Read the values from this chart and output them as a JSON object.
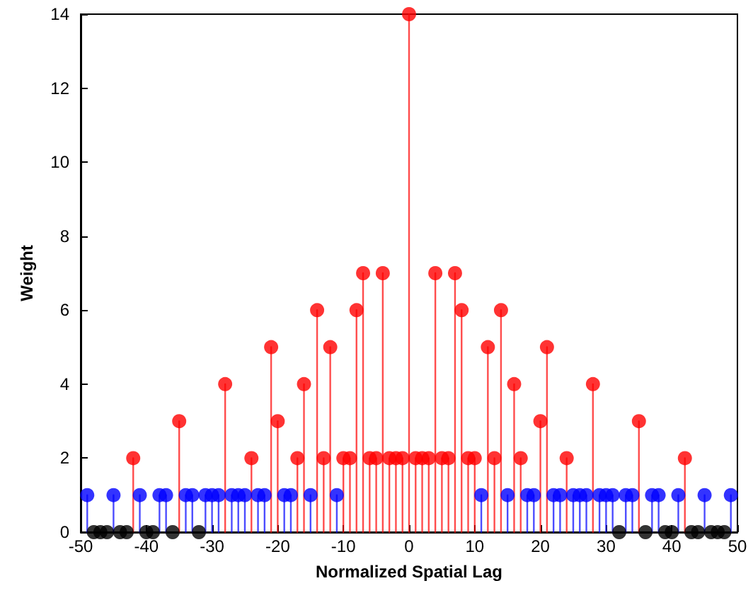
{
  "chart_data": {
    "type": "lollipop",
    "xlabel": "Normalized Spatial Lag",
    "ylabel": "Weight",
    "xlim": [
      -50,
      50
    ],
    "xticks": [
      -50,
      -40,
      -30,
      -20,
      -10,
      0,
      10,
      20,
      30,
      40,
      50
    ],
    "ylim": [
      0,
      14
    ],
    "yticks": [
      0,
      2,
      4,
      6,
      8,
      10,
      12,
      14
    ],
    "grid": false,
    "marker": "circle",
    "series": [
      {
        "color": "#ff0000",
        "x": [
          -42,
          -35,
          -28,
          -24,
          -21,
          -20,
          -17,
          -16,
          -14,
          -13,
          -12,
          -10,
          -9,
          -8,
          -7,
          -6,
          -5,
          -4,
          -3,
          -2,
          -1,
          0,
          1,
          2,
          3,
          4,
          5,
          6,
          7,
          8,
          9,
          10,
          12,
          13,
          14,
          16,
          17,
          20,
          21,
          24,
          28,
          35,
          42
        ],
        "values": [
          2,
          3,
          4,
          2,
          5,
          3,
          2,
          4,
          6,
          2,
          5,
          2,
          2,
          6,
          7,
          2,
          2,
          7,
          2,
          2,
          2,
          14,
          2,
          2,
          2,
          7,
          2,
          2,
          7,
          6,
          2,
          2,
          5,
          2,
          6,
          4,
          2,
          3,
          5,
          2,
          4,
          3,
          2
        ]
      },
      {
        "color": "#0000ff",
        "x": [
          -49,
          -45,
          -41,
          -38,
          -37,
          -34,
          -33,
          -31,
          -30,
          -29,
          -27,
          -26,
          -25,
          -23,
          -22,
          -19,
          -18,
          -15,
          -11,
          11,
          15,
          18,
          19,
          22,
          23,
          25,
          26,
          27,
          29,
          30,
          31,
          33,
          34,
          37,
          38,
          41,
          45,
          49
        ],
        "values": [
          1,
          1,
          1,
          1,
          1,
          1,
          1,
          1,
          1,
          1,
          1,
          1,
          1,
          1,
          1,
          1,
          1,
          1,
          1,
          1,
          1,
          1,
          1,
          1,
          1,
          1,
          1,
          1,
          1,
          1,
          1,
          1,
          1,
          1,
          1,
          1,
          1,
          1
        ]
      },
      {
        "color": "#000000",
        "x": [
          -48,
          -47,
          -46,
          -44,
          -43,
          -40,
          -39,
          -36,
          -32,
          32,
          36,
          39,
          40,
          43,
          44,
          46,
          47,
          48
        ],
        "values": [
          0,
          0,
          0,
          0,
          0,
          0,
          0,
          0,
          0,
          0,
          0,
          0,
          0,
          0,
          0,
          0,
          0,
          0
        ]
      }
    ]
  }
}
